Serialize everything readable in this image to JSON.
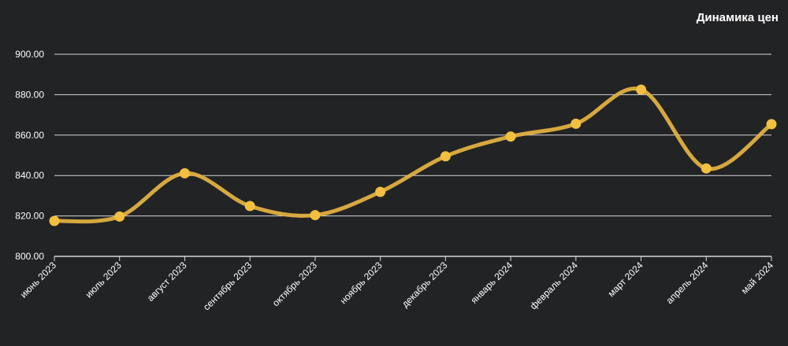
{
  "chart_data": {
    "type": "line",
    "title": "Динамика цен",
    "categories": [
      "июнь 2023",
      "июль 2023",
      "август 2023",
      "сентябрь 2023",
      "октябрь 2023",
      "ноябрь 2023",
      "декабрь 2023",
      "январь 2024",
      "февраль 2024",
      "март 2024",
      "апрель 2024",
      "май 2024"
    ],
    "values": [
      817.5,
      819.7,
      841.1,
      824.9,
      820.4,
      831.9,
      849.5,
      859.3,
      865.6,
      882.5,
      843.5,
      865.4
    ],
    "ylim": [
      800,
      900
    ],
    "yticks": [
      "800.00",
      "820.00",
      "840.00",
      "860.00",
      "880.00",
      "900.00"
    ],
    "grid": true,
    "smooth": true,
    "colors": {
      "line": "#e0b040",
      "point": "#f2c040",
      "background": "#222325",
      "grid": "#d8d8d8"
    }
  }
}
